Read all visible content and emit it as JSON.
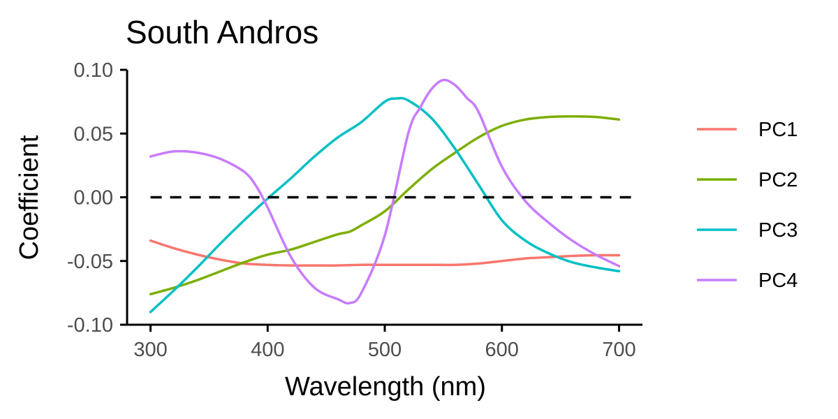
{
  "chart_data": {
    "type": "line",
    "title": "South Andros",
    "xlabel": "Wavelength (nm)",
    "ylabel": "Coefficient",
    "xlim": [
      280,
      720
    ],
    "ylim": [
      -0.1,
      0.1
    ],
    "x_ticks": [
      300,
      400,
      500,
      600,
      700
    ],
    "x_tick_labels": [
      "300",
      "400",
      "500",
      "600",
      "700"
    ],
    "y_ticks": [
      0.1,
      0.05,
      0.0,
      -0.05,
      -0.1
    ],
    "y_tick_labels": [
      "0.10",
      "0.05",
      "0.00",
      "-0.05",
      "-0.10"
    ],
    "reference_line": {
      "y": 0.0,
      "style": "dashed",
      "color": "#000000"
    },
    "grid": false,
    "legend_position": "right",
    "series": [
      {
        "name": "PC1",
        "color": "#F8766D",
        "x": [
          300,
          320,
          340,
          360,
          380,
          400,
          420,
          440,
          460,
          480,
          500,
          520,
          540,
          560,
          580,
          600,
          620,
          640,
          660,
          680,
          700
        ],
        "y": [
          -0.034,
          -0.04,
          -0.045,
          -0.049,
          -0.052,
          -0.053,
          -0.0535,
          -0.0535,
          -0.0535,
          -0.053,
          -0.053,
          -0.053,
          -0.053,
          -0.053,
          -0.052,
          -0.05,
          -0.048,
          -0.047,
          -0.046,
          -0.0455,
          -0.0455
        ]
      },
      {
        "name": "PC2",
        "color": "#7CAE00",
        "x": [
          300,
          320,
          340,
          360,
          380,
          400,
          420,
          440,
          460,
          470,
          480,
          500,
          520,
          540,
          560,
          580,
          600,
          620,
          640,
          660,
          680,
          700
        ],
        "y": [
          -0.076,
          -0.071,
          -0.065,
          -0.058,
          -0.051,
          -0.045,
          -0.041,
          -0.035,
          -0.029,
          -0.027,
          -0.022,
          -0.011,
          0.006,
          0.022,
          0.035,
          0.047,
          0.056,
          0.061,
          0.063,
          0.0635,
          0.063,
          0.061
        ]
      },
      {
        "name": "PC3",
        "color": "#00BFC4",
        "x": [
          300,
          320,
          340,
          360,
          380,
          400,
          420,
          440,
          460,
          480,
          500,
          510,
          520,
          540,
          560,
          580,
          600,
          620,
          640,
          660,
          680,
          700
        ],
        "y": [
          -0.09,
          -0.073,
          -0.055,
          -0.036,
          -0.018,
          -0.001,
          0.015,
          0.032,
          0.047,
          0.059,
          0.075,
          0.0775,
          0.076,
          0.062,
          0.038,
          0.01,
          -0.018,
          -0.034,
          -0.044,
          -0.051,
          -0.055,
          -0.058
        ]
      },
      {
        "name": "PC4",
        "color": "#C77CFF",
        "x": [
          300,
          320,
          340,
          360,
          380,
          390,
          400,
          420,
          440,
          460,
          470,
          480,
          500,
          520,
          530,
          540,
          550,
          560,
          570,
          580,
          600,
          620,
          640,
          660,
          680,
          700
        ],
        "y": [
          0.032,
          0.036,
          0.035,
          0.03,
          0.02,
          0.009,
          -0.008,
          -0.047,
          -0.071,
          -0.08,
          -0.083,
          -0.075,
          -0.03,
          0.05,
          0.07,
          0.085,
          0.092,
          0.088,
          0.078,
          0.067,
          0.024,
          -0.003,
          -0.02,
          -0.034,
          -0.045,
          -0.054
        ]
      }
    ]
  }
}
